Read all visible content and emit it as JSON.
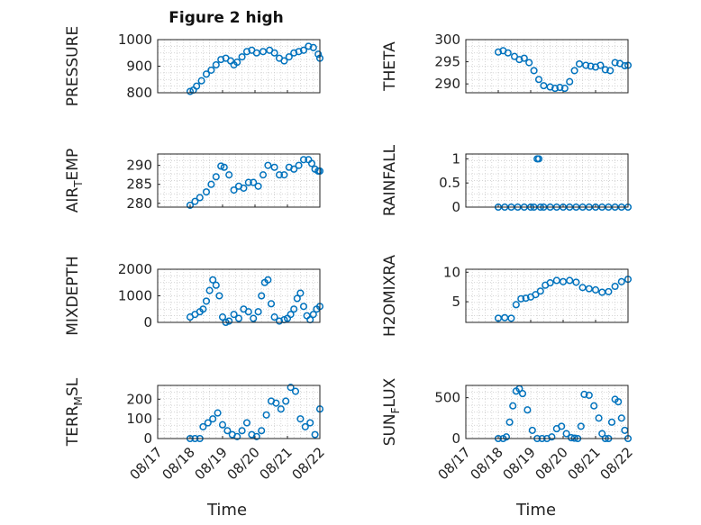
{
  "figure": {
    "title": "Figure 2 high",
    "marker_color": "#0072BD"
  },
  "time_ticks": [
    "08/17",
    "08/18",
    "08/19",
    "08/20",
    "08/21",
    "08/22"
  ],
  "chart_data": [
    {
      "type": "scatter",
      "ylabel": "PRESSURE",
      "xlabel": "",
      "title": "Figure 2 high",
      "x_range": [
        "08/17",
        "08/22"
      ],
      "ylim": [
        800,
        1000
      ],
      "yticks": [
        "800",
        "900",
        "1000"
      ],
      "grid": true,
      "x": [
        1.0,
        1.1,
        1.2,
        1.35,
        1.5,
        1.65,
        1.8,
        1.95,
        2.1,
        2.25,
        2.35,
        2.45,
        2.6,
        2.75,
        2.9,
        3.05,
        3.25,
        3.45,
        3.6,
        3.75,
        3.9,
        4.05,
        4.2,
        4.35,
        4.5,
        4.65,
        4.8,
        4.95,
        5.0
      ],
      "y": [
        805,
        810,
        825,
        845,
        870,
        885,
        905,
        925,
        930,
        920,
        905,
        915,
        935,
        955,
        960,
        950,
        955,
        960,
        950,
        930,
        920,
        935,
        950,
        955,
        960,
        975,
        970,
        945,
        930
      ]
    },
    {
      "type": "scatter",
      "ylabel": "THETA",
      "xlabel": "",
      "title": "",
      "x_range": [
        "08/17",
        "08/22"
      ],
      "ylim": [
        288,
        300
      ],
      "yticks": [
        "290",
        "295",
        "300"
      ],
      "grid": true,
      "x": [
        1.0,
        1.15,
        1.3,
        1.5,
        1.65,
        1.8,
        1.95,
        2.1,
        2.25,
        2.4,
        2.6,
        2.75,
        2.9,
        3.05,
        3.2,
        3.35,
        3.5,
        3.7,
        3.85,
        4.0,
        4.15,
        4.3,
        4.45,
        4.6,
        4.75,
        4.9,
        5.0
      ],
      "y": [
        297.2,
        297.5,
        297,
        296.2,
        295.5,
        295.8,
        294.8,
        293,
        291,
        289.6,
        289.3,
        289,
        289.2,
        289,
        290.5,
        293,
        294.5,
        294.2,
        294,
        293.8,
        294.2,
        293.2,
        293,
        294.8,
        294.6,
        294.1,
        294.2
      ]
    },
    {
      "type": "scatter",
      "ylabel": "AIR_TEMP",
      "xlabel": "",
      "title": "",
      "x_range": [
        "08/17",
        "08/22"
      ],
      "ylim": [
        279,
        293
      ],
      "yticks": [
        "280",
        "285",
        "290"
      ],
      "grid": true,
      "x": [
        1.0,
        1.15,
        1.3,
        1.5,
        1.65,
        1.8,
        1.95,
        2.05,
        2.2,
        2.35,
        2.5,
        2.65,
        2.8,
        2.95,
        3.1,
        3.25,
        3.4,
        3.6,
        3.75,
        3.9,
        4.05,
        4.2,
        4.35,
        4.5,
        4.65,
        4.75,
        4.85,
        4.95,
        5.0
      ],
      "y": [
        279.5,
        280.5,
        281.5,
        283,
        285,
        287,
        289.8,
        289.5,
        287.5,
        283.5,
        284.5,
        284,
        285.5,
        285.5,
        284.5,
        287.5,
        290,
        289.5,
        287.5,
        287.5,
        289.5,
        289,
        290,
        291.5,
        291.5,
        290.5,
        289,
        288.5,
        288.5
      ]
    },
    {
      "type": "scatter",
      "ylabel": "RAINFALL",
      "xlabel": "",
      "title": "",
      "x_range": [
        "08/17",
        "08/22"
      ],
      "ylim": [
        0,
        1.1
      ],
      "yticks": [
        "0",
        "0.5",
        "1"
      ],
      "grid": true,
      "x": [
        1.0,
        1.2,
        1.4,
        1.6,
        1.8,
        2.0,
        2.1,
        2.2,
        2.25,
        2.3,
        2.4,
        2.6,
        2.8,
        3.0,
        3.2,
        3.4,
        3.6,
        3.8,
        4.0,
        4.2,
        4.4,
        4.6,
        4.8,
        5.0
      ],
      "y": [
        0,
        0,
        0,
        0,
        0,
        0,
        0,
        1,
        1,
        0,
        0,
        0,
        0,
        0,
        0,
        0,
        0,
        0,
        0,
        0,
        0,
        0,
        0,
        0
      ]
    },
    {
      "type": "scatter",
      "ylabel": "MIXDEPTH",
      "xlabel": "",
      "title": "",
      "x_range": [
        "08/17",
        "08/22"
      ],
      "ylim": [
        0,
        2000
      ],
      "yticks": [
        "0",
        "1000",
        "2000"
      ],
      "grid": true,
      "x": [
        1.0,
        1.15,
        1.3,
        1.4,
        1.5,
        1.6,
        1.7,
        1.8,
        1.9,
        2.0,
        2.1,
        2.2,
        2.35,
        2.5,
        2.65,
        2.8,
        2.95,
        3.1,
        3.2,
        3.3,
        3.4,
        3.5,
        3.6,
        3.75,
        3.9,
        4.0,
        4.1,
        4.2,
        4.3,
        4.4,
        4.5,
        4.6,
        4.7,
        4.8,
        4.9,
        5.0
      ],
      "y": [
        200,
        300,
        400,
        500,
        800,
        1200,
        1600,
        1400,
        1000,
        200,
        0,
        50,
        300,
        150,
        500,
        400,
        150,
        400,
        1000,
        1500,
        1600,
        700,
        200,
        50,
        100,
        150,
        300,
        500,
        900,
        1100,
        600,
        250,
        100,
        300,
        500,
        600
      ]
    },
    {
      "type": "scatter",
      "ylabel": "H2OMIXRA",
      "xlabel": "",
      "title": "",
      "x_range": [
        "08/17",
        "08/22"
      ],
      "ylim": [
        1.5,
        10.5
      ],
      "yticks": [
        "5",
        "10"
      ],
      "grid": true,
      "x": [
        1.0,
        1.2,
        1.4,
        1.55,
        1.7,
        1.85,
        2.0,
        2.15,
        2.3,
        2.45,
        2.6,
        2.8,
        3.0,
        3.2,
        3.4,
        3.6,
        3.8,
        4.0,
        4.2,
        4.4,
        4.6,
        4.8,
        5.0
      ],
      "y": [
        2.2,
        2.3,
        2.2,
        4.5,
        5.5,
        5.6,
        5.8,
        6.2,
        6.8,
        7.8,
        8.2,
        8.6,
        8.4,
        8.6,
        8.3,
        7.4,
        7.2,
        7.0,
        6.6,
        6.7,
        7.6,
        8.4,
        8.8
      ]
    },
    {
      "type": "scatter",
      "ylabel": "TERR_MSL",
      "xlabel": "Time",
      "title": "",
      "x_range": [
        "08/17",
        "08/22"
      ],
      "ylim": [
        0,
        270
      ],
      "yticks": [
        "0",
        "100",
        "200"
      ],
      "grid": true,
      "x": [
        1.0,
        1.15,
        1.3,
        1.4,
        1.55,
        1.7,
        1.85,
        2.0,
        2.15,
        2.3,
        2.45,
        2.6,
        2.75,
        2.9,
        3.05,
        3.2,
        3.35,
        3.5,
        3.65,
        3.8,
        3.95,
        4.1,
        4.25,
        4.4,
        4.55,
        4.7,
        4.85,
        5.0
      ],
      "y": [
        0,
        0,
        0,
        60,
        80,
        100,
        130,
        70,
        40,
        20,
        10,
        40,
        80,
        20,
        10,
        40,
        120,
        190,
        180,
        150,
        190,
        260,
        240,
        100,
        60,
        80,
        20,
        150
      ]
    },
    {
      "type": "scatter",
      "ylabel": "SUN_FLUX",
      "xlabel": "Time",
      "title": "",
      "x_range": [
        "08/17",
        "08/22"
      ],
      "ylim": [
        0,
        650
      ],
      "yticks": [
        "0",
        "500"
      ],
      "grid": true,
      "x": [
        1.0,
        1.15,
        1.25,
        1.35,
        1.45,
        1.55,
        1.65,
        1.75,
        1.9,
        2.05,
        2.2,
        2.35,
        2.5,
        2.65,
        2.8,
        2.95,
        3.1,
        3.25,
        3.35,
        3.45,
        3.55,
        3.65,
        3.8,
        3.95,
        4.1,
        4.2,
        4.3,
        4.4,
        4.5,
        4.6,
        4.7,
        4.8,
        4.9,
        5.0
      ],
      "y": [
        0,
        0,
        20,
        200,
        400,
        580,
        610,
        550,
        350,
        100,
        0,
        0,
        0,
        20,
        120,
        150,
        60,
        10,
        5,
        0,
        150,
        540,
        530,
        400,
        250,
        60,
        0,
        0,
        200,
        480,
        450,
        250,
        100,
        0
      ]
    }
  ]
}
